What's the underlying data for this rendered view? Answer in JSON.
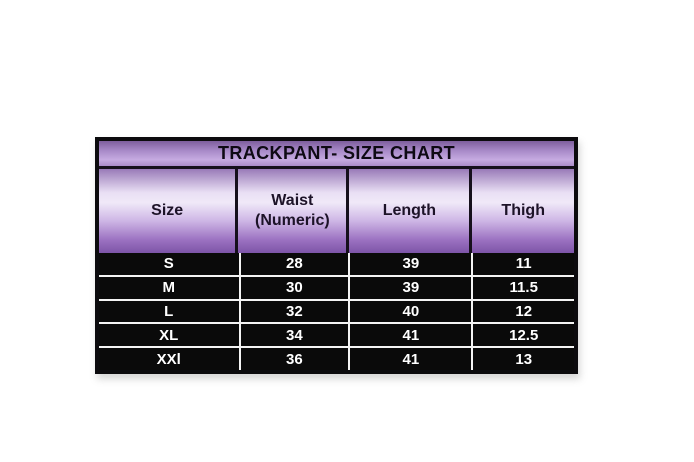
{
  "chart_data": {
    "type": "table",
    "title": "TRACKPANT- SIZE CHART",
    "columns": [
      "Size",
      "Waist (Numeric)",
      "Length",
      "Thigh"
    ],
    "rows": [
      [
        "S",
        "28",
        "39",
        "11"
      ],
      [
        "M",
        "30",
        "39",
        "11.5"
      ],
      [
        "L",
        "32",
        "40",
        "12"
      ],
      [
        "XL",
        "34",
        "41",
        "12.5"
      ],
      [
        "XXl",
        "36",
        "41",
        "13"
      ]
    ]
  },
  "colors": {
    "title_gradient_top": "#7e5e9d",
    "title_gradient_bottom": "#ab8cc9",
    "header_gradient_top": "#997ab8",
    "header_gradient_light": "#f0e9f8",
    "header_gradient_bottom": "#7d55a8",
    "body_background": "#0a0a0a",
    "body_text": "#ffffff",
    "divider_light": "#f4f4f4",
    "border_dark": "#0c0b0e",
    "page_background": "#ffffff"
  }
}
